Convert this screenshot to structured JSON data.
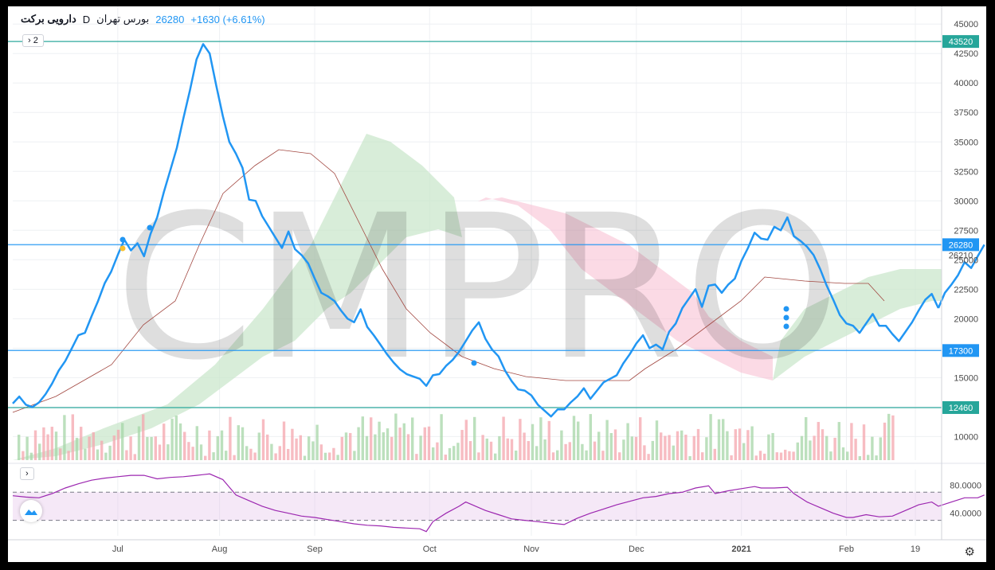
{
  "legend": {
    "name": "دارویی برکت",
    "interval": "D",
    "exchange": "بورس تهران",
    "last": "26280",
    "change": "+1630 (+6.61%)"
  },
  "badges": {
    "main": "2",
    "rsi": ""
  },
  "watermark": "CMPRO",
  "chart_data": [
    {
      "type": "line",
      "title": "",
      "y_axis_ticks": [
        10000,
        12500,
        15000,
        17500,
        20000,
        22500,
        25000,
        27500,
        30000,
        32500,
        35000,
        37500,
        40000,
        42500,
        45000
      ],
      "ylim": [
        8000,
        46500
      ],
      "x_axis_labels": [
        {
          "label": "Jul",
          "day": 32
        },
        {
          "label": "Aug",
          "day": 63
        },
        {
          "label": "Sep",
          "day": 92
        },
        {
          "label": "Oct",
          "day": 127
        },
        {
          "label": "Nov",
          "day": 158
        },
        {
          "label": "Dec",
          "day": 190
        },
        {
          "label": "2021",
          "day": 222
        },
        {
          "label": "Feb",
          "day": 254
        },
        {
          "label": "19",
          "day": 275
        }
      ],
      "xlim": [
        0,
        283
      ],
      "horizontal_levels": [
        {
          "value": 43520,
          "label": "43520",
          "color": "#26a69a"
        },
        {
          "value": 26280,
          "label": "26280",
          "color": "#2196f3"
        },
        {
          "value": 17300,
          "label": "17300",
          "color": "#2196f3"
        },
        {
          "value": 12460,
          "label": "12460",
          "color": "#26a69a"
        }
      ],
      "extra_price_labels": [
        {
          "value": 26210,
          "label": "26210",
          "color": "#131722"
        }
      ],
      "series": [
        {
          "role": "price",
          "color": "#2196f3",
          "points": [
            [
              0,
              12800
            ],
            [
              2,
              13400
            ],
            [
              4,
              12700
            ],
            [
              6,
              12500
            ],
            [
              8,
              12900
            ],
            [
              10,
              13600
            ],
            [
              12,
              14500
            ],
            [
              14,
              15600
            ],
            [
              16,
              16400
            ],
            [
              18,
              17500
            ],
            [
              20,
              18600
            ],
            [
              22,
              18800
            ],
            [
              24,
              20200
            ],
            [
              26,
              21500
            ],
            [
              28,
              23000
            ],
            [
              30,
              24000
            ],
            [
              32,
              25400
            ],
            [
              34,
              26700
            ],
            [
              36,
              25800
            ],
            [
              38,
              26400
            ],
            [
              40,
              25300
            ],
            [
              42,
              27200
            ],
            [
              44,
              28600
            ],
            [
              46,
              30700
            ],
            [
              48,
              32600
            ],
            [
              50,
              34500
            ],
            [
              52,
              37000
            ],
            [
              54,
              39400
            ],
            [
              56,
              42000
            ],
            [
              58,
              43300
            ],
            [
              60,
              42500
            ],
            [
              62,
              39800
            ],
            [
              64,
              37200
            ],
            [
              66,
              35000
            ],
            [
              68,
              34000
            ],
            [
              70,
              32800
            ],
            [
              72,
              30100
            ],
            [
              74,
              30000
            ],
            [
              76,
              28700
            ],
            [
              78,
              27800
            ],
            [
              80,
              26900
            ],
            [
              82,
              26000
            ],
            [
              84,
              27400
            ],
            [
              86,
              25900
            ],
            [
              88,
              25400
            ],
            [
              90,
              24700
            ],
            [
              92,
              23400
            ],
            [
              94,
              22200
            ],
            [
              96,
              21900
            ],
            [
              98,
              21500
            ],
            [
              100,
              20700
            ],
            [
              102,
              20000
            ],
            [
              104,
              19700
            ],
            [
              106,
              20800
            ],
            [
              108,
              19300
            ],
            [
              110,
              18600
            ],
            [
              112,
              17800
            ],
            [
              114,
              17000
            ],
            [
              116,
              16300
            ],
            [
              118,
              15700
            ],
            [
              120,
              15300
            ],
            [
              122,
              15100
            ],
            [
              124,
              14900
            ],
            [
              126,
              14300
            ],
            [
              128,
              15200
            ],
            [
              130,
              15300
            ],
            [
              132,
              16000
            ],
            [
              134,
              16500
            ],
            [
              136,
              17200
            ],
            [
              138,
              18100
            ],
            [
              140,
              19000
            ],
            [
              142,
              19700
            ],
            [
              144,
              18300
            ],
            [
              146,
              17400
            ],
            [
              148,
              16800
            ],
            [
              150,
              15600
            ],
            [
              152,
              14700
            ],
            [
              154,
              14000
            ],
            [
              156,
              13900
            ],
            [
              158,
              13500
            ],
            [
              160,
              12700
            ],
            [
              162,
              12200
            ],
            [
              164,
              11700
            ],
            [
              166,
              12300
            ],
            [
              168,
              12300
            ],
            [
              170,
              12900
            ],
            [
              172,
              13400
            ],
            [
              174,
              14100
            ],
            [
              176,
              13200
            ],
            [
              178,
              13900
            ],
            [
              180,
              14600
            ],
            [
              182,
              14900
            ],
            [
              184,
              15200
            ],
            [
              186,
              16200
            ],
            [
              188,
              17000
            ],
            [
              190,
              17900
            ],
            [
              192,
              18600
            ],
            [
              194,
              17500
            ],
            [
              196,
              17800
            ],
            [
              198,
              17400
            ],
            [
              200,
              18900
            ],
            [
              202,
              19600
            ],
            [
              204,
              20900
            ],
            [
              206,
              21700
            ],
            [
              208,
              22500
            ],
            [
              210,
              21000
            ],
            [
              212,
              22800
            ],
            [
              214,
              22900
            ],
            [
              216,
              22200
            ],
            [
              218,
              22900
            ],
            [
              220,
              23400
            ],
            [
              222,
              24900
            ],
            [
              224,
              26000
            ],
            [
              226,
              27300
            ],
            [
              228,
              26800
            ],
            [
              230,
              26700
            ],
            [
              232,
              27800
            ],
            [
              234,
              27500
            ],
            [
              236,
              28600
            ],
            [
              238,
              27000
            ],
            [
              240,
              26600
            ],
            [
              242,
              26100
            ],
            [
              244,
              25400
            ],
            [
              246,
              24200
            ],
            [
              248,
              22800
            ],
            [
              250,
              21600
            ],
            [
              252,
              20300
            ],
            [
              254,
              19600
            ],
            [
              256,
              19400
            ],
            [
              258,
              18800
            ],
            [
              260,
              19600
            ],
            [
              262,
              20400
            ],
            [
              264,
              19400
            ],
            [
              266,
              19400
            ],
            [
              268,
              18700
            ],
            [
              270,
              18100
            ],
            [
              272,
              18900
            ],
            [
              274,
              19700
            ],
            [
              276,
              20700
            ],
            [
              278,
              21600
            ],
            [
              280,
              22100
            ],
            [
              282,
              20900
            ]
          ]
        },
        {
          "role": "price-tail",
          "color": "#2196f3",
          "points": [
            [
              282,
              20900
            ],
            [
              284,
              22200
            ],
            [
              286,
              22900
            ],
            [
              288,
              23700
            ],
            [
              290,
              24800
            ],
            [
              292,
              24300
            ],
            [
              294,
              25300
            ],
            [
              296,
              26280
            ]
          ]
        }
      ]
    },
    {
      "type": "line",
      "title": "",
      "y_axis_ticks": [
        40,
        80
      ],
      "y_axis_tick_labels": [
        "40.0000",
        "80.0000"
      ],
      "ylim": [
        8,
        102
      ],
      "bands": [
        30,
        70
      ],
      "series": [
        {
          "role": "rsi",
          "color": "#9c27b0",
          "points": [
            [
              0,
              65
            ],
            [
              4,
              63
            ],
            [
              8,
              62
            ],
            [
              12,
              68
            ],
            [
              16,
              76
            ],
            [
              20,
              82
            ],
            [
              24,
              87
            ],
            [
              28,
              90
            ],
            [
              32,
              92
            ],
            [
              36,
              94
            ],
            [
              40,
              94
            ],
            [
              44,
              89
            ],
            [
              48,
              91
            ],
            [
              52,
              92
            ],
            [
              56,
              94
            ],
            [
              60,
              96
            ],
            [
              64,
              88
            ],
            [
              68,
              66
            ],
            [
              72,
              58
            ],
            [
              76,
              50
            ],
            [
              80,
              44
            ],
            [
              84,
              40
            ],
            [
              88,
              36
            ],
            [
              92,
              34
            ],
            [
              96,
              31
            ],
            [
              100,
              28
            ],
            [
              104,
              25
            ],
            [
              108,
              23
            ],
            [
              112,
              22
            ],
            [
              116,
              20
            ],
            [
              120,
              19
            ],
            [
              124,
              18
            ],
            [
              126,
              14
            ],
            [
              128,
              28
            ],
            [
              132,
              40
            ],
            [
              136,
              50
            ],
            [
              138,
              56
            ],
            [
              140,
              52
            ],
            [
              144,
              44
            ],
            [
              148,
              38
            ],
            [
              152,
              32
            ],
            [
              156,
              30
            ],
            [
              160,
              28
            ],
            [
              164,
              26
            ],
            [
              168,
              24
            ],
            [
              172,
              33
            ],
            [
              176,
              40
            ],
            [
              180,
              46
            ],
            [
              184,
              52
            ],
            [
              188,
              57
            ],
            [
              192,
              62
            ],
            [
              196,
              64
            ],
            [
              200,
              68
            ],
            [
              204,
              70
            ],
            [
              208,
              76
            ],
            [
              212,
              79
            ],
            [
              214,
              68
            ],
            [
              218,
              72
            ],
            [
              222,
              75
            ],
            [
              226,
              78
            ],
            [
              228,
              76
            ],
            [
              232,
              76
            ],
            [
              236,
              77
            ],
            [
              238,
              68
            ],
            [
              242,
              56
            ],
            [
              246,
              48
            ],
            [
              250,
              40
            ],
            [
              254,
              34
            ],
            [
              256,
              34
            ],
            [
              260,
              38
            ],
            [
              264,
              35
            ],
            [
              268,
              36
            ],
            [
              272,
              44
            ],
            [
              276,
              52
            ],
            [
              280,
              56
            ],
            [
              282,
              50
            ],
            [
              286,
              56
            ],
            [
              290,
              62
            ],
            [
              294,
              62
            ],
            [
              296,
              66
            ]
          ]
        }
      ]
    }
  ]
}
